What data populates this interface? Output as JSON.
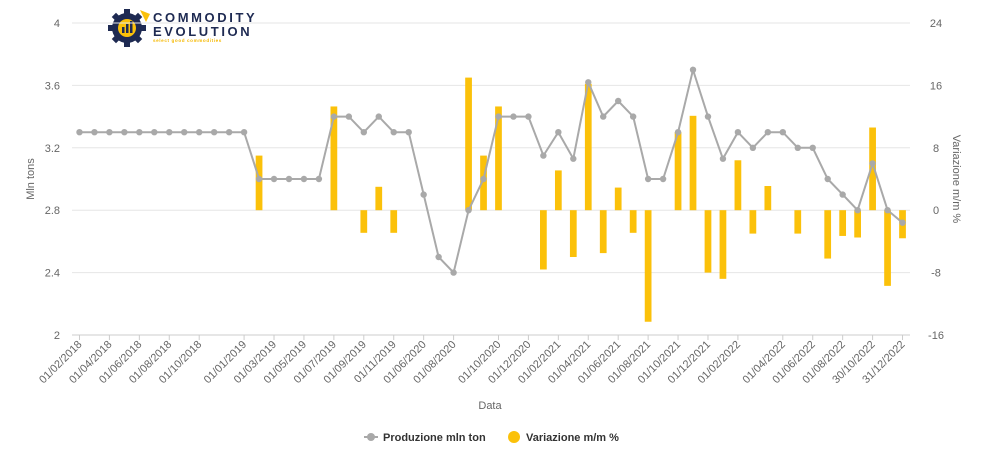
{
  "logo": {
    "line1": "COMMODITY",
    "line2": "EVOLUTION",
    "tagline": "select good commodities"
  },
  "chart_data": {
    "type": "bar+line",
    "xlabel": "Data",
    "ylabel_left": "Mln tons",
    "ylabel_right": "Variazione m/m %",
    "ylim_left": [
      2,
      4
    ],
    "ylim_right": [
      -16,
      24
    ],
    "yticks_left": [
      "2",
      "2.4",
      "2.8",
      "3.2",
      "3.6",
      "4"
    ],
    "yticks_right": [
      "-16",
      "-8",
      "0",
      "8",
      "16",
      "24"
    ],
    "x_tick_labels": [
      "01/02/2018",
      "01/04/2018",
      "01/06/2018",
      "01/08/2018",
      "01/10/2018",
      "01/01/2019",
      "01/03/2019",
      "01/05/2019",
      "01/07/2019",
      "01/09/2019",
      "01/11/2019",
      "01/06/2020",
      "01/08/2020",
      "01/10/2020",
      "01/12/2020",
      "01/02/2021",
      "01/04/2021",
      "01/06/2021",
      "01/08/2021",
      "01/10/2021",
      "01/12/2021",
      "01/02/2022",
      "01/04/2022",
      "01/06/2022",
      "01/08/2022",
      "30/10/2022",
      "31/12/2022"
    ],
    "grid": true,
    "legend_position": "bottom-center",
    "series": [
      {
        "name": "Produzione mln ton",
        "type": "line",
        "axis": "left",
        "color": "#a9a9a9",
        "values": [
          3.3,
          3.3,
          3.3,
          3.3,
          3.3,
          3.3,
          3.3,
          3.3,
          3.3,
          3.3,
          3.3,
          3.3,
          3.0,
          3.0,
          3.0,
          3.0,
          3.0,
          3.4,
          3.4,
          3.3,
          3.4,
          3.3,
          3.3,
          2.9,
          2.5,
          2.4,
          2.8,
          3.0,
          3.4,
          3.4,
          3.4,
          3.15,
          3.3,
          3.13,
          3.62,
          3.4,
          3.5,
          3.4,
          3.0,
          3.0,
          3.3,
          3.7,
          3.4,
          3.13,
          3.3,
          3.2,
          3.3,
          3.3,
          3.2,
          3.2,
          3.0,
          2.9,
          2.8,
          3.1,
          2.8,
          2.72
        ]
      },
      {
        "name": "Variazione m/m %",
        "type": "bar",
        "axis": "right",
        "color": "#fbc10a",
        "values": [
          0,
          0,
          0,
          0,
          0,
          0,
          0,
          0,
          0,
          0,
          0,
          0,
          7,
          0,
          0,
          0,
          0,
          13.3,
          0,
          -2.9,
          3.0,
          -2.9,
          0,
          0,
          0,
          0,
          17,
          7,
          13.3,
          0,
          0,
          -7.6,
          5.1,
          -6,
          16.2,
          -5.5,
          2.9,
          -2.9,
          -14.3,
          0,
          10,
          12.1,
          -8,
          -8.8,
          6.4,
          -3,
          3.1,
          0,
          -3,
          0,
          -6.2,
          -3.3,
          -3.5,
          10.6,
          -9.7,
          -3.6
        ]
      }
    ]
  }
}
